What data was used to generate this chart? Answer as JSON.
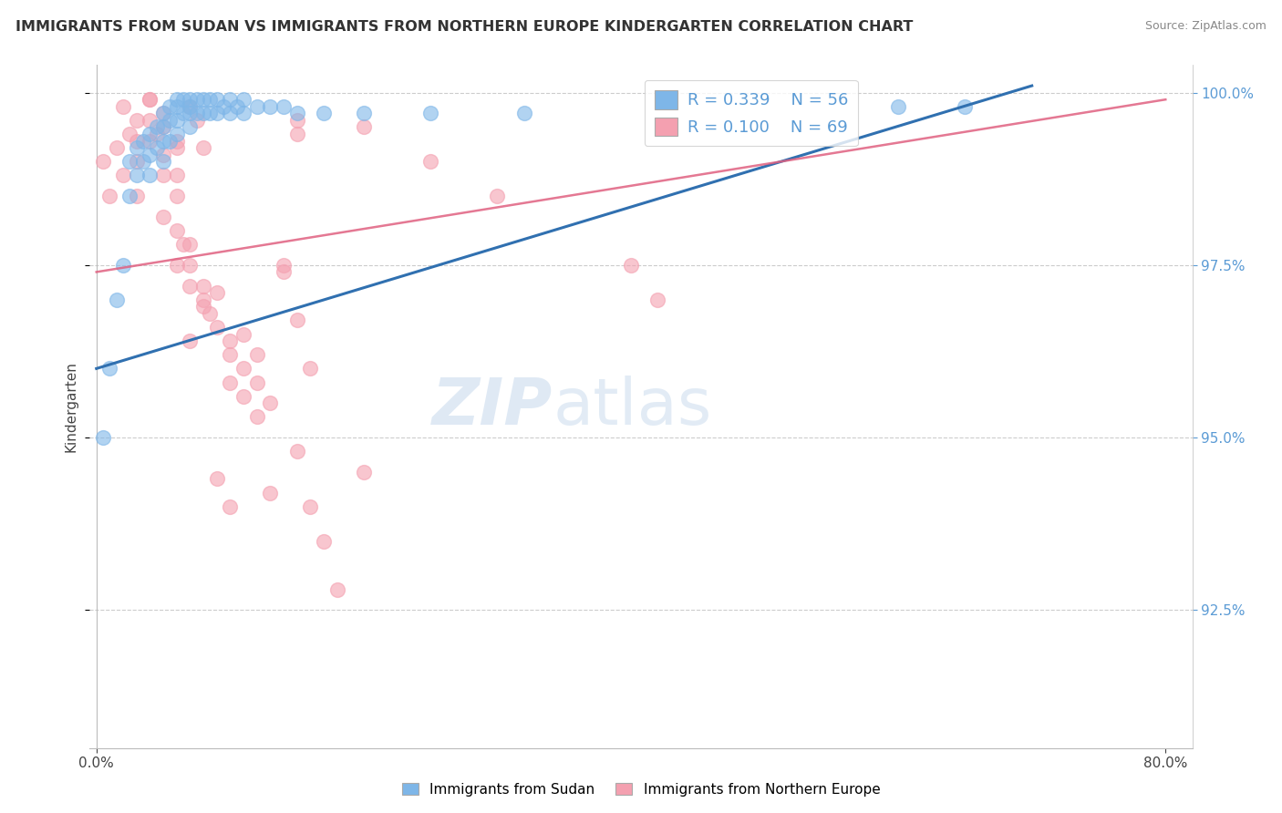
{
  "title": "IMMIGRANTS FROM SUDAN VS IMMIGRANTS FROM NORTHERN EUROPE KINDERGARTEN CORRELATION CHART",
  "source_text": "Source: ZipAtlas.com",
  "ylabel": "Kindergarten",
  "sudan_R": "0.339",
  "sudan_N": "56",
  "northern_R": "0.100",
  "northern_N": "69",
  "sudan_color": "#7EB6E8",
  "northern_color": "#F4A0B0",
  "sudan_line_color": "#3070B0",
  "northern_line_color": "#E06080",
  "background_color": "#ffffff",
  "legend_sudan_label": "Immigrants from Sudan",
  "legend_northern_label": "Immigrants from Northern Europe",
  "xlim": [
    -0.005,
    0.82
  ],
  "ylim": [
    0.905,
    1.004
  ],
  "y_ticks": [
    0.925,
    0.95,
    0.975,
    1.0
  ],
  "x_ticks": [
    0.0,
    0.8
  ],
  "sudan_scatter_x": [
    0.005,
    0.01,
    0.015,
    0.02,
    0.025,
    0.025,
    0.03,
    0.03,
    0.035,
    0.035,
    0.04,
    0.04,
    0.04,
    0.045,
    0.045,
    0.05,
    0.05,
    0.05,
    0.05,
    0.055,
    0.055,
    0.055,
    0.06,
    0.06,
    0.06,
    0.06,
    0.065,
    0.065,
    0.07,
    0.07,
    0.07,
    0.07,
    0.075,
    0.075,
    0.08,
    0.08,
    0.085,
    0.085,
    0.09,
    0.09,
    0.095,
    0.1,
    0.1,
    0.105,
    0.11,
    0.11,
    0.12,
    0.13,
    0.14,
    0.15,
    0.17,
    0.2,
    0.25,
    0.32,
    0.6,
    0.65
  ],
  "sudan_scatter_y": [
    0.95,
    0.96,
    0.97,
    0.975,
    0.985,
    0.99,
    0.992,
    0.988,
    0.993,
    0.99,
    0.994,
    0.991,
    0.988,
    0.995,
    0.992,
    0.997,
    0.995,
    0.993,
    0.99,
    0.998,
    0.996,
    0.993,
    0.999,
    0.998,
    0.996,
    0.994,
    0.999,
    0.997,
    0.999,
    0.998,
    0.997,
    0.995,
    0.999,
    0.997,
    0.999,
    0.997,
    0.999,
    0.997,
    0.999,
    0.997,
    0.998,
    0.999,
    0.997,
    0.998,
    0.999,
    0.997,
    0.998,
    0.998,
    0.998,
    0.997,
    0.997,
    0.997,
    0.997,
    0.997,
    0.998,
    0.998
  ],
  "northern_scatter_x": [
    0.005,
    0.01,
    0.015,
    0.02,
    0.025,
    0.03,
    0.03,
    0.04,
    0.04,
    0.045,
    0.05,
    0.05,
    0.06,
    0.06,
    0.065,
    0.07,
    0.07,
    0.08,
    0.085,
    0.09,
    0.1,
    0.11,
    0.12,
    0.13,
    0.14,
    0.15,
    0.16,
    0.1,
    0.08,
    0.07,
    0.075,
    0.04,
    0.05,
    0.06,
    0.05,
    0.03,
    0.06,
    0.07,
    0.08,
    0.09,
    0.09,
    0.1,
    0.11,
    0.12,
    0.13,
    0.14,
    0.15,
    0.4,
    0.42,
    0.15,
    0.06,
    0.25,
    0.2,
    0.3,
    0.1,
    0.12,
    0.11,
    0.08,
    0.07,
    0.04,
    0.03,
    0.02,
    0.05,
    0.06,
    0.15,
    0.2,
    0.16,
    0.17,
    0.18
  ],
  "northern_scatter_y": [
    0.99,
    0.985,
    0.992,
    0.988,
    0.994,
    0.99,
    0.985,
    0.996,
    0.993,
    0.994,
    0.988,
    0.982,
    0.985,
    0.98,
    0.978,
    0.975,
    0.972,
    0.97,
    0.968,
    0.966,
    0.962,
    0.965,
    0.958,
    0.955,
    0.975,
    0.967,
    0.96,
    0.964,
    0.972,
    0.978,
    0.996,
    0.999,
    0.997,
    0.988,
    0.991,
    0.993,
    0.975,
    0.998,
    0.969,
    0.971,
    0.944,
    0.958,
    0.96,
    0.962,
    0.942,
    0.974,
    0.996,
    0.975,
    0.97,
    0.994,
    0.992,
    0.99,
    0.995,
    0.985,
    0.94,
    0.953,
    0.956,
    0.992,
    0.964,
    0.999,
    0.996,
    0.998,
    0.995,
    0.993,
    0.948,
    0.945,
    0.94,
    0.935,
    0.928
  ],
  "sudan_trend_x": [
    0.0,
    0.7
  ],
  "sudan_trend_y": [
    0.96,
    1.001
  ],
  "northern_trend_x": [
    0.0,
    0.8
  ],
  "northern_trend_y": [
    0.974,
    0.999
  ]
}
